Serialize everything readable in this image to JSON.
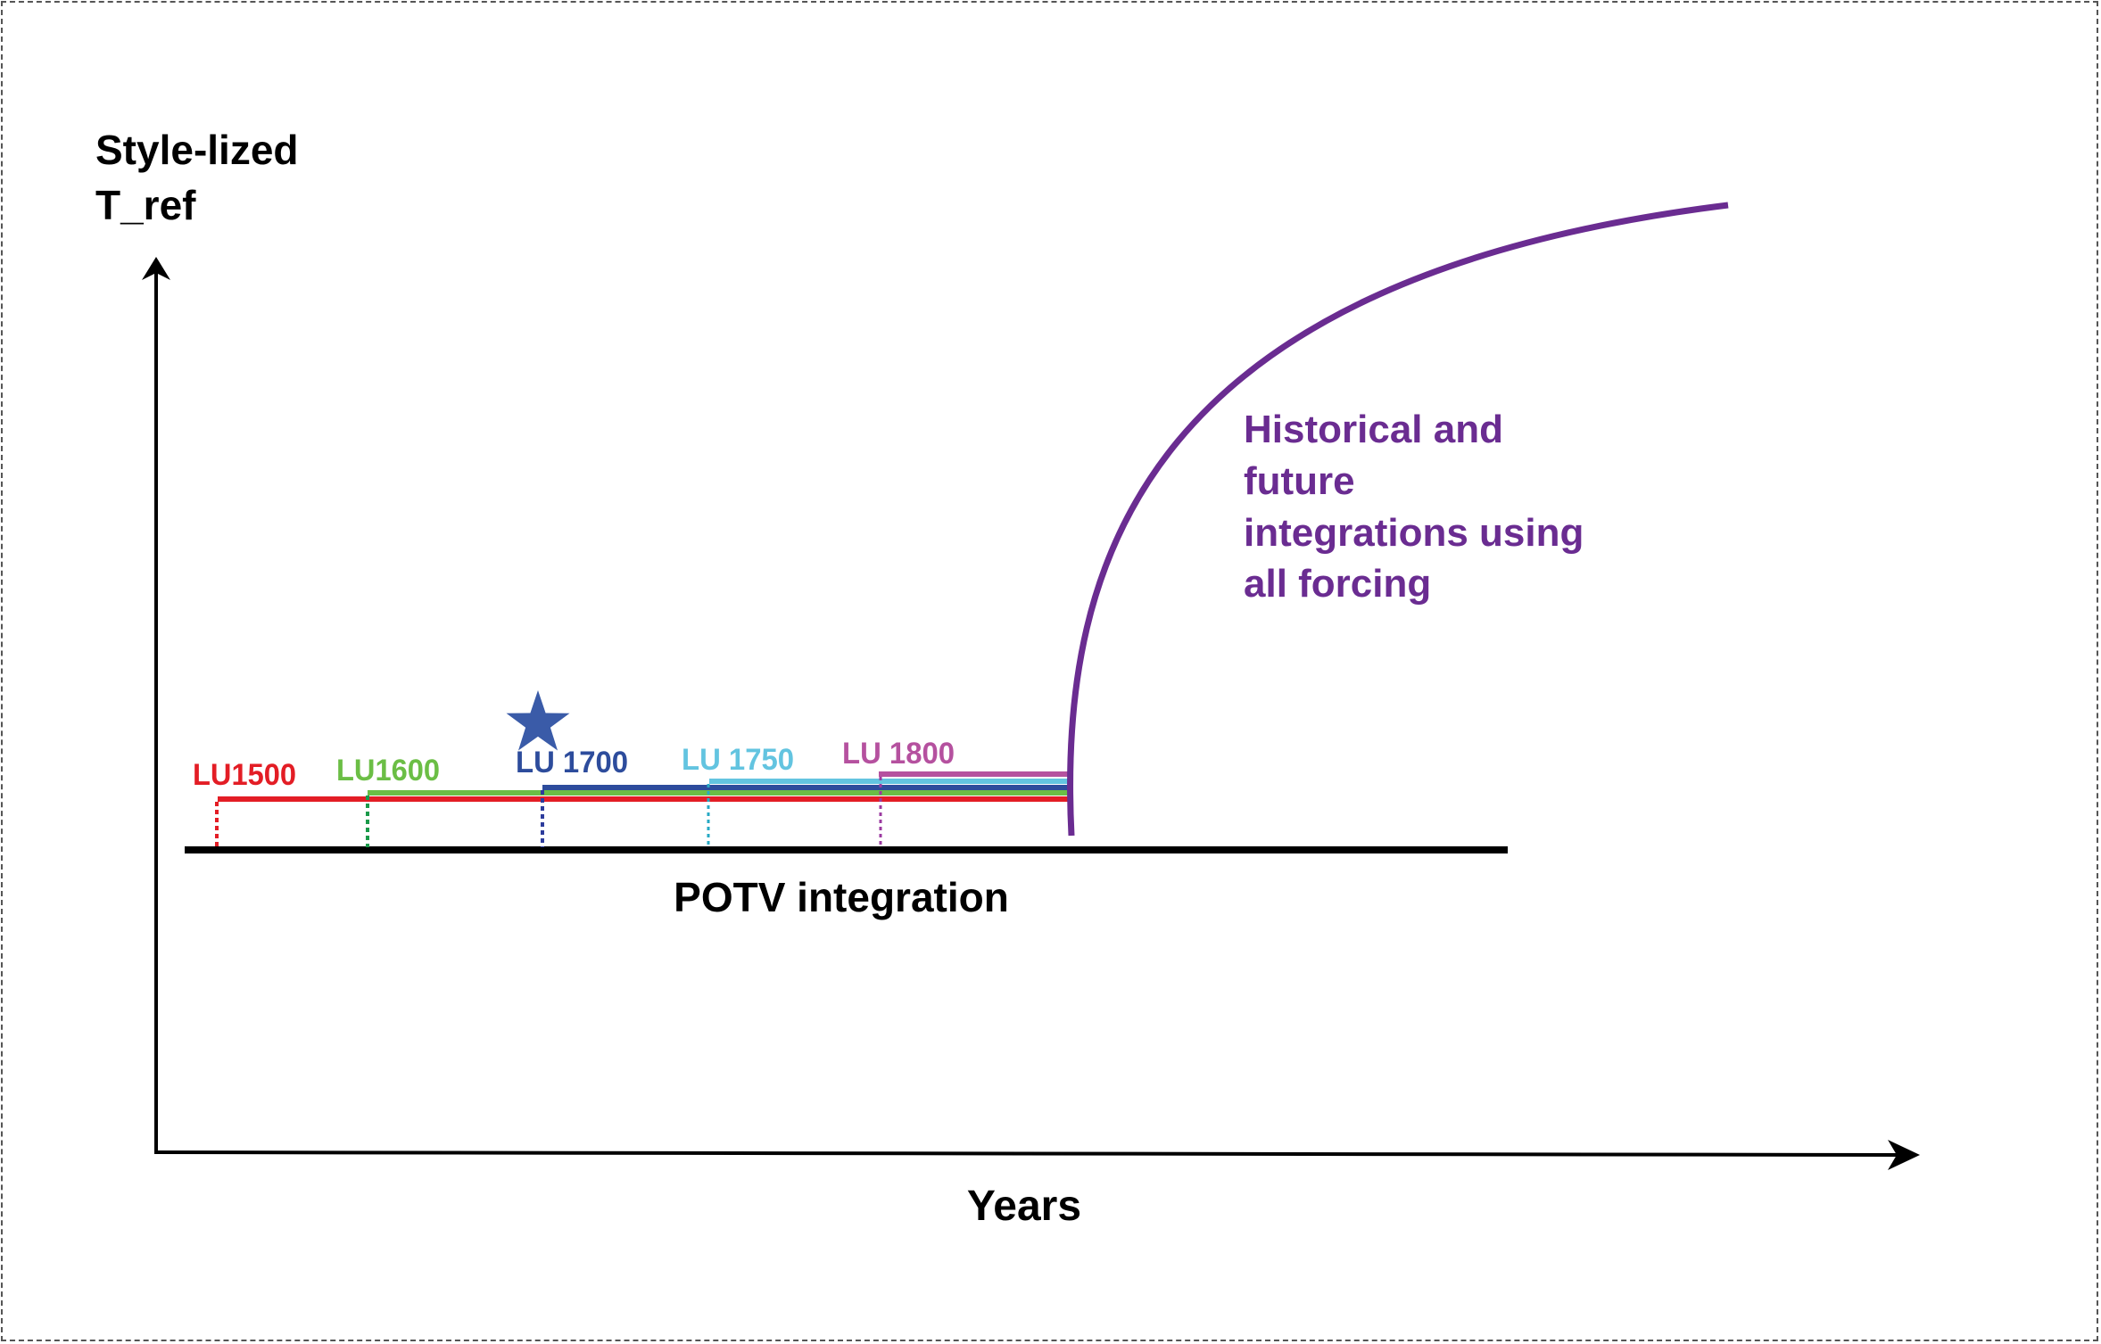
{
  "y_axis_label": [
    "Style-lized",
    "T_ref"
  ],
  "x_axis_label": "Years",
  "baseline_label": "POTV integration",
  "forcing_label": [
    "Historical and",
    "future",
    "integrations using",
    "all forcing"
  ],
  "colors": {
    "axis": "#000000",
    "forcing": "#6a2c91",
    "star": "#3a5ba8"
  },
  "experiments": [
    {
      "id": "lu1500",
      "label": "LU1500",
      "color": "#e31d25"
    },
    {
      "id": "lu1600",
      "label": "LU1600",
      "color": "#6bbe45"
    },
    {
      "id": "lu1700",
      "label": "LU 1700",
      "color": "#2d4c9c"
    },
    {
      "id": "lu1750",
      "label": "LU 1750",
      "color": "#63c4e0"
    },
    {
      "id": "lu1800",
      "label": "LU 1800",
      "color": "#b5519f"
    }
  ],
  "tick_colors": [
    "#e31d25",
    "#1a9a4a",
    "#2d3c9c",
    "#27a9c4",
    "#9b3aa0"
  ],
  "star_icon": "star-icon"
}
